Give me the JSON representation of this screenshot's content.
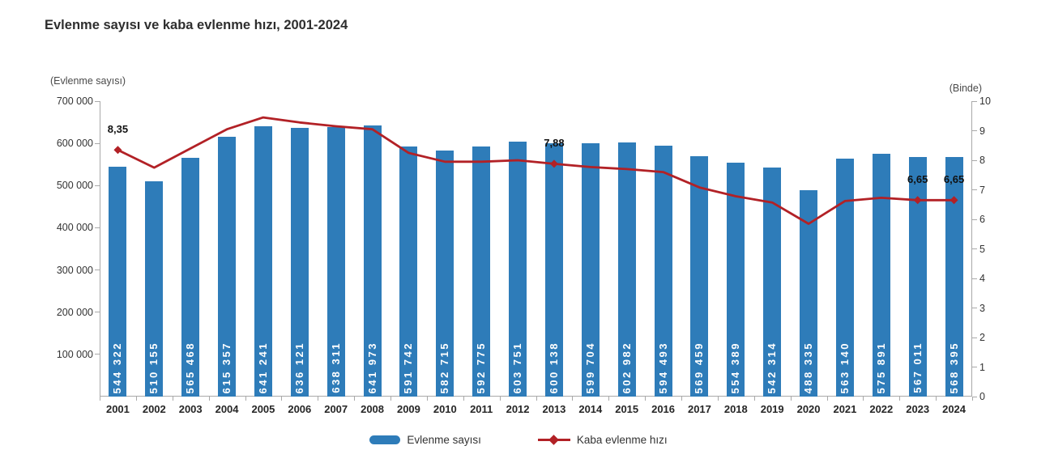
{
  "title": "Evlenme sayısı ve kaba evlenme hızı, 2001-2024",
  "axes": {
    "left": {
      "unit_label": "(Evlenme sayısı)",
      "tick_labels": [
        "700 000",
        "600 000",
        "500 000",
        "400 000",
        "300 000",
        "200 000",
        "100 000"
      ]
    },
    "right": {
      "unit_label": "(Binde)",
      "tick_labels": [
        "10",
        "9",
        "8",
        "7",
        "6",
        "5",
        "4",
        "3",
        "2",
        "1",
        "0"
      ]
    },
    "x": {
      "tick_labels": [
        "2001",
        "2002",
        "2003",
        "2004",
        "2005",
        "2006",
        "2007",
        "2008",
        "2009",
        "2010",
        "2011",
        "2012",
        "2013",
        "2014",
        "2015",
        "2016",
        "2017",
        "2018",
        "2019",
        "2020",
        "2021",
        "2022",
        "2023",
        "2024"
      ]
    }
  },
  "legend": {
    "items": [
      {
        "label": "Evlenme sayısı"
      },
      {
        "label": "Kaba evlenme hızı"
      }
    ]
  },
  "colors": {
    "bar": "#2e7cb9",
    "line": "#b22126",
    "axis": "#a9a9a9",
    "bar_label": "#ffffff",
    "text": "#333333",
    "annotation": "#111111"
  },
  "chart_data": {
    "type": "combo",
    "title": "Evlenme sayısı ve kaba evlenme hızı, 2001-2024",
    "categories": [
      "2001",
      "2002",
      "2003",
      "2004",
      "2005",
      "2006",
      "2007",
      "2008",
      "2009",
      "2010",
      "2011",
      "2012",
      "2013",
      "2014",
      "2015",
      "2016",
      "2017",
      "2018",
      "2019",
      "2020",
      "2021",
      "2022",
      "2023",
      "2024"
    ],
    "series": [
      {
        "name": "Evlenme sayısı",
        "type": "bar",
        "axis": "left",
        "values": [
          544322,
          510155,
          565468,
          615357,
          641241,
          636121,
          638311,
          641973,
          591742,
          582715,
          592775,
          603751,
          600138,
          599704,
          602982,
          594493,
          569459,
          554389,
          542314,
          488335,
          563140,
          575891,
          567011,
          568395
        ],
        "value_labels": [
          "544 322",
          "510 155",
          "565 468",
          "615 357",
          "641 241",
          "636 121",
          "638 311",
          "641 973",
          "591 742",
          "582 715",
          "592 775",
          "603 751",
          "600 138",
          "599 704",
          "602 982",
          "594 493",
          "569 459",
          "554 389",
          "542 314",
          "488 335",
          "563 140",
          "575 891",
          "567 011",
          "568 395"
        ]
      },
      {
        "name": "Kaba evlenme hızı",
        "type": "line",
        "axis": "right",
        "values": [
          8.35,
          7.75,
          8.4,
          9.05,
          9.45,
          9.28,
          9.15,
          9.05,
          8.25,
          7.95,
          7.95,
          8.0,
          7.88,
          7.77,
          7.7,
          7.6,
          7.08,
          6.78,
          6.57,
          5.85,
          6.62,
          6.73,
          6.65,
          6.65
        ],
        "annotations": [
          {
            "year": "2001",
            "text": "8,35"
          },
          {
            "year": "2013",
            "text": "7,88"
          },
          {
            "year": "2023",
            "text": "6,65"
          },
          {
            "year": "2024",
            "text": "6,65"
          }
        ]
      }
    ],
    "left_ylabel": "(Evlenme sayısı)",
    "right_ylabel": "(Binde)",
    "left_ylim": [
      0,
      700000
    ],
    "right_ylim": [
      0,
      10
    ],
    "grid": false,
    "legend_position": "bottom"
  }
}
